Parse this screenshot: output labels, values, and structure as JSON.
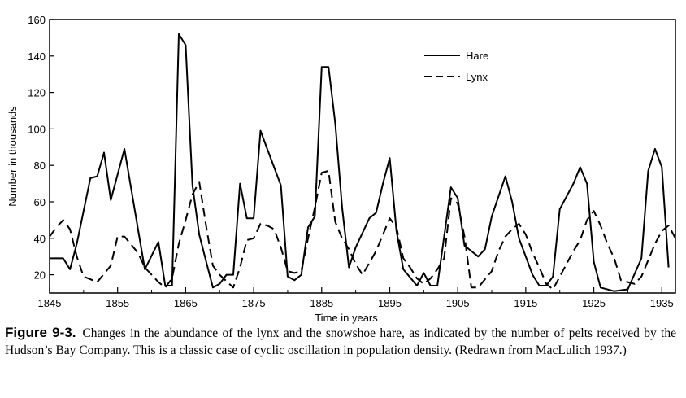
{
  "chart_data": {
    "type": "line",
    "title": "",
    "xlabel": "Time in years",
    "ylabel": "Number in thousands",
    "xlim": [
      1845,
      1937
    ],
    "ylim": [
      10,
      160
    ],
    "x_ticks": [
      1845,
      1855,
      1865,
      1875,
      1885,
      1895,
      1905,
      1915,
      1925,
      1935
    ],
    "y_ticks": [
      20,
      40,
      60,
      80,
      100,
      120,
      140,
      160
    ],
    "grid": false,
    "legend_position": "top-right",
    "series": [
      {
        "name": "Hare",
        "style": "solid",
        "points": [
          [
            1845,
            29
          ],
          [
            1847,
            29
          ],
          [
            1848,
            23
          ],
          [
            1849,
            37
          ],
          [
            1851,
            73
          ],
          [
            1852,
            74
          ],
          [
            1853,
            87
          ],
          [
            1854,
            61
          ],
          [
            1856,
            89
          ],
          [
            1858,
            45
          ],
          [
            1859,
            23
          ],
          [
            1861,
            38
          ],
          [
            1862,
            14
          ],
          [
            1863,
            14
          ],
          [
            1864,
            152
          ],
          [
            1865,
            146
          ],
          [
            1866,
            69
          ],
          [
            1867,
            42
          ],
          [
            1869,
            13
          ],
          [
            1870,
            15
          ],
          [
            1871,
            20
          ],
          [
            1872,
            20
          ],
          [
            1873,
            70
          ],
          [
            1874,
            51
          ],
          [
            1875,
            51
          ],
          [
            1876,
            99
          ],
          [
            1877,
            89
          ],
          [
            1878,
            79
          ],
          [
            1879,
            69
          ],
          [
            1880,
            19
          ],
          [
            1881,
            17
          ],
          [
            1882,
            20
          ],
          [
            1883,
            46
          ],
          [
            1884,
            52
          ],
          [
            1885,
            134
          ],
          [
            1886,
            134
          ],
          [
            1887,
            103
          ],
          [
            1888,
            57
          ],
          [
            1889,
            24
          ],
          [
            1890,
            35
          ],
          [
            1892,
            51
          ],
          [
            1893,
            54
          ],
          [
            1894,
            70
          ],
          [
            1895,
            84
          ],
          [
            1896,
            44
          ],
          [
            1897,
            23
          ],
          [
            1899,
            14
          ],
          [
            1900,
            21
          ],
          [
            1901,
            14
          ],
          [
            1902,
            14
          ],
          [
            1904,
            68
          ],
          [
            1905,
            62
          ],
          [
            1906,
            36
          ],
          [
            1908,
            30
          ],
          [
            1909,
            34
          ],
          [
            1910,
            52
          ],
          [
            1912,
            74
          ],
          [
            1913,
            60
          ],
          [
            1914,
            40
          ],
          [
            1916,
            20
          ],
          [
            1917,
            14
          ],
          [
            1918,
            14
          ],
          [
            1919,
            19
          ],
          [
            1920,
            56
          ],
          [
            1922,
            70
          ],
          [
            1923,
            79
          ],
          [
            1924,
            70
          ],
          [
            1925,
            27
          ],
          [
            1926,
            13
          ],
          [
            1928,
            11
          ],
          [
            1930,
            12
          ],
          [
            1932,
            29
          ],
          [
            1933,
            77
          ],
          [
            1934,
            89
          ],
          [
            1935,
            79
          ],
          [
            1936,
            24
          ]
        ]
      },
      {
        "name": "Lynx",
        "style": "dashed",
        "points": [
          [
            1845,
            41
          ],
          [
            1846,
            46
          ],
          [
            1847,
            50
          ],
          [
            1848,
            45
          ],
          [
            1849,
            30
          ],
          [
            1850,
            19
          ],
          [
            1852,
            16
          ],
          [
            1854,
            25
          ],
          [
            1855,
            41
          ],
          [
            1856,
            41
          ],
          [
            1858,
            32
          ],
          [
            1859,
            24
          ],
          [
            1861,
            16
          ],
          [
            1862,
            13
          ],
          [
            1863,
            18
          ],
          [
            1864,
            37
          ],
          [
            1865,
            50
          ],
          [
            1866,
            64
          ],
          [
            1867,
            71
          ],
          [
            1868,
            47
          ],
          [
            1869,
            25
          ],
          [
            1870,
            20
          ],
          [
            1872,
            13
          ],
          [
            1873,
            24
          ],
          [
            1874,
            39
          ],
          [
            1875,
            40
          ],
          [
            1876,
            48
          ],
          [
            1877,
            47
          ],
          [
            1878,
            45
          ],
          [
            1879,
            35
          ],
          [
            1880,
            22
          ],
          [
            1881,
            21
          ],
          [
            1882,
            22
          ],
          [
            1883,
            40
          ],
          [
            1884,
            57
          ],
          [
            1885,
            76
          ],
          [
            1886,
            77
          ],
          [
            1887,
            49
          ],
          [
            1888,
            40
          ],
          [
            1889,
            34
          ],
          [
            1890,
            26
          ],
          [
            1891,
            20
          ],
          [
            1893,
            33
          ],
          [
            1894,
            42
          ],
          [
            1895,
            51
          ],
          [
            1896,
            46
          ],
          [
            1897,
            29
          ],
          [
            1898,
            24
          ],
          [
            1899,
            18
          ],
          [
            1900,
            15
          ],
          [
            1901,
            18
          ],
          [
            1902,
            23
          ],
          [
            1903,
            29
          ],
          [
            1904,
            62
          ],
          [
            1905,
            59
          ],
          [
            1906,
            41
          ],
          [
            1907,
            13
          ],
          [
            1908,
            13
          ],
          [
            1910,
            22
          ],
          [
            1911,
            33
          ],
          [
            1912,
            41
          ],
          [
            1913,
            45
          ],
          [
            1914,
            48
          ],
          [
            1915,
            42
          ],
          [
            1916,
            32
          ],
          [
            1917,
            24
          ],
          [
            1918,
            15
          ],
          [
            1919,
            12
          ],
          [
            1921,
            26
          ],
          [
            1922,
            33
          ],
          [
            1923,
            39
          ],
          [
            1924,
            50
          ],
          [
            1925,
            55
          ],
          [
            1926,
            47
          ],
          [
            1927,
            37
          ],
          [
            1928,
            29
          ],
          [
            1929,
            17
          ],
          [
            1930,
            16
          ],
          [
            1931,
            15
          ],
          [
            1932,
            19
          ],
          [
            1933,
            28
          ],
          [
            1934,
            37
          ],
          [
            1935,
            44
          ],
          [
            1936,
            47
          ],
          [
            1937,
            40
          ]
        ]
      }
    ]
  },
  "caption": {
    "label": "Figure 9-3.",
    "text": "Changes in the abundance of the lynx and the snowshoe hare, as indicated by the number of pelts received by the Hudson’s Bay Company. This is a classic case of cyclic oscillation in population density. (Redrawn from MacLulich 1937.)"
  }
}
